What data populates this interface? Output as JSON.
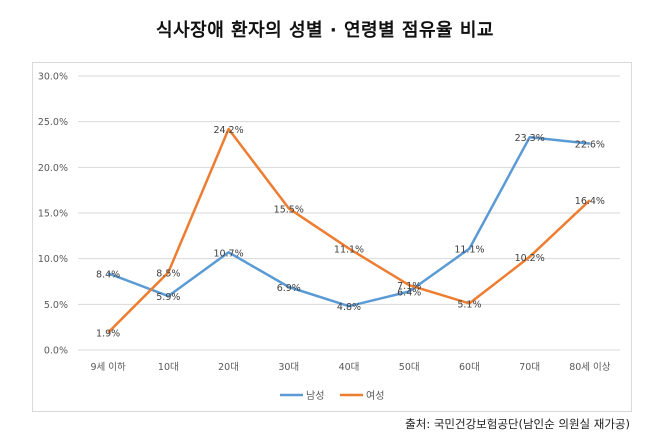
{
  "title": "식사장애 환자의 성별 · 연령별 점유율 비교",
  "source": "출처: 국민건강보험공단(남인순 의원실 재가공)",
  "chart_data": {
    "type": "line",
    "title": "식사장애 환자의 성별 · 연령별 점유율 비교",
    "xlabel": "",
    "ylabel": "",
    "categories": [
      "9세 이하",
      "10대",
      "20대",
      "30대",
      "40대",
      "50대",
      "60대",
      "70대",
      "80세 이상"
    ],
    "series": [
      {
        "name": "남성",
        "color": "#5b9bd5",
        "values": [
          8.4,
          5.9,
          10.7,
          6.9,
          4.8,
          6.4,
          11.1,
          23.3,
          22.6
        ],
        "labels": [
          "8.4%",
          "5.9%",
          "10.7%",
          "6.9%",
          "4.8%",
          "6.4%",
          "11.1%",
          "23.3%",
          "22.6%"
        ]
      },
      {
        "name": "여성",
        "color": "#ed7d31",
        "values": [
          1.9,
          8.5,
          24.2,
          15.5,
          11.1,
          7.1,
          5.1,
          10.2,
          16.4
        ],
        "labels": [
          "1.9%",
          "8.5%",
          "24.2%",
          "15.5%",
          "11.1%",
          "7.1%",
          "5.1%",
          "10.2%",
          "16.4%"
        ]
      }
    ],
    "ylim": [
      0,
      30
    ],
    "yticks": [
      "0.0%",
      "5.0%",
      "10.0%",
      "15.0%",
      "20.0%",
      "25.0%",
      "30.0%"
    ],
    "grid": true,
    "legend_position": "bottom"
  },
  "colors": {
    "grid": "#d9d9d9",
    "axis_text": "#595959",
    "label_text": "#404040"
  }
}
